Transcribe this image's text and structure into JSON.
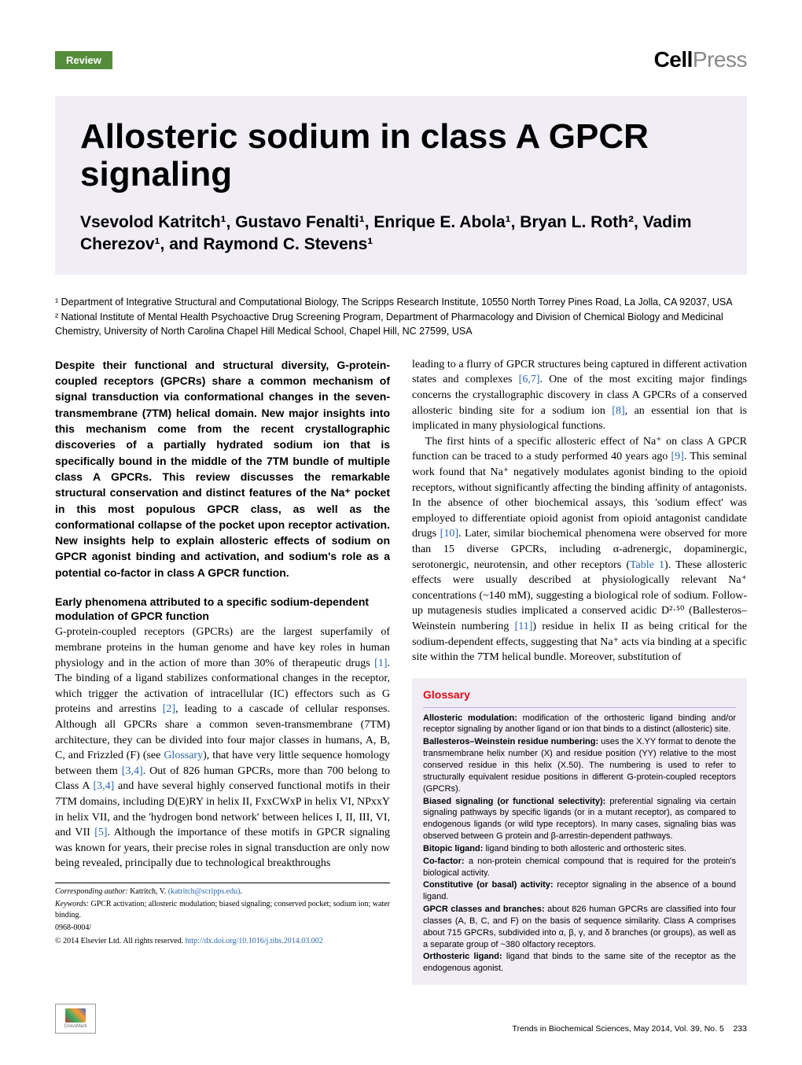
{
  "header": {
    "review_label": "Review",
    "logo_cell": "Cell",
    "logo_press": "Press"
  },
  "title": "Allosteric sodium in class A GPCR signaling",
  "authors": "Vsevolod Katritch¹, Gustavo Fenalti¹, Enrique E. Abola¹, Bryan L. Roth², Vadim Cherezov¹, and Raymond C. Stevens¹",
  "affiliations": {
    "aff1": "¹ Department of Integrative Structural and Computational Biology, The Scripps Research Institute, 10550 North Torrey Pines Road, La Jolla, CA 92037, USA",
    "aff2": "² National Institute of Mental Health Psychoactive Drug Screening Program, Department of Pharmacology and Division of Chemical Biology and Medicinal Chemistry, University of North Carolina Chapel Hill Medical School, Chapel Hill, NC 27599, USA"
  },
  "abstract": "Despite their functional and structural diversity, G-protein-coupled receptors (GPCRs) share a common mechanism of signal transduction via conformational changes in the seven-transmembrane (7TM) helical domain. New major insights into this mechanism come from the recent crystallographic discoveries of a partially hydrated sodium ion that is specifically bound in the middle of the 7TM bundle of multiple class A GPCRs. This review discusses the remarkable structural conservation and distinct features of the Na⁺ pocket in this most populous GPCR class, as well as the conformational collapse of the pocket upon receptor activation. New insights help to explain allosteric effects of sodium on GPCR agonist binding and activation, and sodium's role as a potential co-factor in class A GPCR function.",
  "section1_heading": "Early phenomena attributed to a specific sodium-dependent modulation of GPCR function",
  "section1_p1_a": "G-protein-coupled receptors (GPCRs) are the largest superfamily of membrane proteins in the human genome and have key roles in human physiology and in the action of more than 30% of therapeutic drugs ",
  "section1_p1_ref1": "[1]",
  "section1_p1_b": ". The binding of a ligand stabilizes conformational changes in the receptor, which trigger the activation of intracellular (IC) effectors such as G proteins and arrestins ",
  "section1_p1_ref2": "[2]",
  "section1_p1_c": ", leading to a cascade of cellular responses. Although all GPCRs share a common seven-transmembrane (7TM) architecture, they can be divided into four major classes in humans, A, B, C, and Frizzled (F) (see ",
  "section1_p1_gloss": "Glossary",
  "section1_p1_d": "), that have very little sequence homology between them ",
  "section1_p1_ref3": "[3,4]",
  "section1_p1_e": ". Out of 826 human GPCRs, more than 700 belong to Class A ",
  "section1_p1_ref4": "[3,4]",
  "section1_p1_f": " and have several highly conserved functional motifs in their 7TM domains, including D(E)RY in helix II, FxxCWxP in helix VI, NPxxY in helix VII, and the 'hydrogen bond network' between helices I, II, III, VI, and VII ",
  "section1_p1_ref5": "[5]",
  "section1_p1_g": ". Although the importance of these motifs in GPCR signaling was known for years, their precise roles in signal transduction are only now being revealed, principally due to technological breakthroughs",
  "col2_p1_a": "leading to a flurry of GPCR structures being captured in different activation states and complexes ",
  "col2_p1_ref1": "[6,7]",
  "col2_p1_b": ". One of the most exciting major findings concerns the crystallographic discovery in class A GPCRs of a conserved allosteric binding site for a sodium ion ",
  "col2_p1_ref2": "[8]",
  "col2_p1_c": ", an essential ion that is implicated in many physiological functions.",
  "col2_p2_a": "The first hints of a specific allosteric effect of Na⁺ on class A GPCR function can be traced to a study performed 40 years ago ",
  "col2_p2_ref1": "[9]",
  "col2_p2_b": ". This seminal work found that Na⁺ negatively modulates agonist binding to the opioid receptors, without significantly affecting the binding affinity of antagonists. In the absence of other biochemical assays, this 'sodium effect' was employed to differentiate opioid agonist from opioid antagonist candidate drugs ",
  "col2_p2_ref2": "[10]",
  "col2_p2_c": ". Later, similar biochemical phenomena were observed for more than 15 diverse GPCRs, including α-adrenergic, dopaminergic, serotonergic, neurotensin, and other receptors (",
  "col2_p2_tbl": "Table 1",
  "col2_p2_d": "). These allosteric effects were usually described at physiologically relevant Na⁺ concentrations (~140 mM), suggesting a biological role of sodium. Follow-up mutagenesis studies implicated a conserved acidic D²·⁵⁰ (Ballesteros–Weinstein numbering ",
  "col2_p2_ref3": "[11]",
  "col2_p2_e": ") residue in helix II as being critical for the sodium-dependent effects, suggesting that Na⁺ acts via binding at a specific site within the 7TM helical bundle. Moreover, substitution of",
  "footnotes": {
    "corresponding_label": "Corresponding author: ",
    "corresponding_name": "Katritch, V. ",
    "corresponding_email": "(katritch@scripps.edu)",
    "corresponding_dot": ".",
    "keywords_label": "Keywords: ",
    "keywords": "GPCR activation; allosteric modulation; biased signaling; conserved pocket; sodium ion; water binding.",
    "issn": "0968-0004/",
    "copyright": "© 2014 Elsevier Ltd. All rights reserved. ",
    "doi": "http://dx.doi.org/10.1016/j.tibs.2014.03.002"
  },
  "glossary": {
    "heading": "Glossary",
    "entries": [
      {
        "term": "Allosteric modulation:",
        "def": " modification of the orthosteric ligand binding and/or receptor signaling by another ligand or ion that binds to a distinct (allosteric) site."
      },
      {
        "term": "Ballesteros–Weinstein residue numbering:",
        "def": " uses the X.YY format to denote the transmembrane helix number (X) and residue position (YY) relative to the most conserved residue in this helix (X.50). The numbering is used to refer to structurally equivalent residue positions in different G-protein-coupled receptors (GPCRs)."
      },
      {
        "term": "Biased signaling (or functional selectivity):",
        "def": " preferential signaling via certain signaling pathways by specific ligands (or in a mutant receptor), as compared to endogenous ligands (or wild type receptors). In many cases, signaling bias was observed between G protein and β-arrestin-dependent pathways."
      },
      {
        "term": "Bitopic ligand:",
        "def": " ligand binding to both allosteric and orthosteric sites."
      },
      {
        "term": "Co-factor:",
        "def": " a non-protein chemical compound that is required for the protein's biological activity."
      },
      {
        "term": "Constitutive (or basal) activity:",
        "def": " receptor signaling in the absence of a bound ligand."
      },
      {
        "term": "GPCR classes and branches:",
        "def": " about 826 human GPCRs are classified into four classes (A, B, C, and F) on the basis of sequence similarity. Class A comprises about 715 GPCRs, subdivided into α, β, γ, and δ branches (or groups), as well as a separate group of ~380 olfactory receptors."
      },
      {
        "term": "Orthosteric ligand:",
        "def": " ligand that binds to the same site of the receptor as the endogenous agonist."
      }
    ]
  },
  "footer": {
    "crossmark": "CrossMark",
    "journal": "Trends in Biochemical Sciences, May 2014, Vol. 39, No. 5",
    "page": "233"
  },
  "colors": {
    "review_bg": "#558C3B",
    "title_band_bg": "#F0EDF4",
    "glossary_bg": "#F0EDF4",
    "glossary_heading": "#E30B17",
    "link": "#2A66B1"
  }
}
